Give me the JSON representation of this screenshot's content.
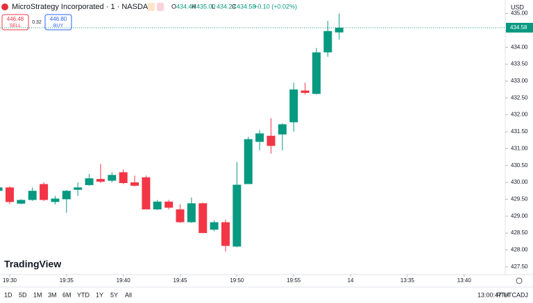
{
  "ui": {
    "symbol": "MicroStrategy Incorporated · 1 · NASDAQ",
    "ohlc": [
      {
        "label": "O",
        "value": "434.44"
      },
      {
        "label": "H",
        "value": "435.00"
      },
      {
        "label": "L",
        "value": "434.23"
      },
      {
        "label": "C",
        "value": "434.58"
      }
    ],
    "change": "+0.10 (+0.02%)",
    "sell_price": "446.48",
    "sell": "SELL",
    "spread": "0.32",
    "buy_price": "446.80",
    "buy": "BUY",
    "currency": "USD",
    "logo": "TradingView",
    "ranges": [
      "1D",
      "5D",
      "1M",
      "3M",
      "6M",
      "YTD",
      "1Y",
      "5Y",
      "All"
    ],
    "clock": "13:00:47 UTC",
    "rth": "RTH",
    "adj": "ADJ"
  },
  "chart_data": {
    "type": "candlestick",
    "categories": [
      "19:29",
      "19:30",
      "19:31",
      "19:32",
      "19:33",
      "19:34",
      "19:35",
      "19:36",
      "19:37",
      "19:38",
      "19:39",
      "19:40",
      "19:41",
      "19:42",
      "19:43",
      "19:44",
      "19:45",
      "19:46",
      "19:47",
      "19:48",
      "19:49",
      "19:50",
      "19:51",
      "19:52",
      "19:53",
      "19:54",
      "19:55",
      "19:56",
      "19:57",
      "19:58",
      "19:59"
    ],
    "open": [
      429.75,
      429.85,
      429.37,
      429.48,
      429.95,
      429.42,
      429.5,
      429.78,
      429.92,
      430.1,
      430.05,
      430.3,
      430.0,
      430.15,
      429.2,
      429.43,
      429.2,
      428.82,
      429.38,
      428.6,
      428.82,
      428.1,
      429.95,
      431.2,
      431.38,
      431.42,
      431.78,
      432.72,
      432.62,
      433.85,
      434.44
    ],
    "high": [
      429.9,
      429.88,
      429.5,
      429.85,
      430.0,
      429.6,
      429.78,
      430.0,
      430.25,
      430.55,
      430.3,
      430.38,
      430.2,
      430.2,
      429.48,
      429.48,
      429.35,
      429.55,
      429.4,
      428.88,
      428.9,
      430.6,
      431.35,
      431.55,
      431.9,
      431.75,
      432.95,
      432.95,
      433.98,
      434.78,
      435.0
    ],
    "low": [
      429.7,
      429.35,
      429.35,
      429.45,
      429.45,
      429.35,
      429.1,
      429.6,
      429.9,
      429.98,
      430.0,
      429.95,
      429.88,
      429.2,
      429.18,
      429.2,
      428.8,
      428.8,
      428.5,
      428.55,
      427.95,
      428.08,
      429.95,
      430.95,
      430.85,
      430.95,
      431.5,
      432.6,
      432.6,
      433.72,
      434.23
    ],
    "close": [
      429.85,
      429.42,
      429.48,
      429.75,
      429.48,
      429.52,
      429.75,
      429.85,
      430.12,
      430.02,
      430.22,
      429.98,
      429.9,
      429.2,
      429.43,
      429.25,
      428.82,
      429.38,
      428.5,
      428.82,
      428.12,
      429.93,
      431.28,
      431.45,
      431.08,
      431.72,
      432.75,
      432.65,
      433.85,
      434.48,
      434.58
    ],
    "up_color": "#089981",
    "down_color": "#f23645",
    "last_price": 434.58,
    "ylim": [
      427.27,
      435.4
    ],
    "yticks": [
      {
        "value": 427.5,
        "label": "427.50"
      },
      {
        "value": 428,
        "label": "428.00"
      },
      {
        "value": 428.5,
        "label": "428.50"
      },
      {
        "value": 429,
        "label": "429.00"
      },
      {
        "value": 429.5,
        "label": "429.50"
      },
      {
        "value": 430,
        "label": "430.00"
      },
      {
        "value": 430.5,
        "label": "430.50"
      },
      {
        "value": 431,
        "label": "431.00"
      },
      {
        "value": 431.5,
        "label": "431.50"
      },
      {
        "value": 432,
        "label": "432.00"
      },
      {
        "value": 432.5,
        "label": "432.50"
      },
      {
        "value": 433,
        "label": "433.00"
      },
      {
        "value": 433.5,
        "label": "433.50"
      },
      {
        "value": 434,
        "label": "434.00"
      },
      {
        "value": 434.5,
        "label": "434.50"
      },
      {
        "value": 435,
        "label": "435.00"
      }
    ],
    "xticks": [
      "19:30",
      "19:35",
      "19:40",
      "19:45",
      "19:50",
      "19:55",
      "14",
      "13:35",
      "13:40"
    ]
  }
}
